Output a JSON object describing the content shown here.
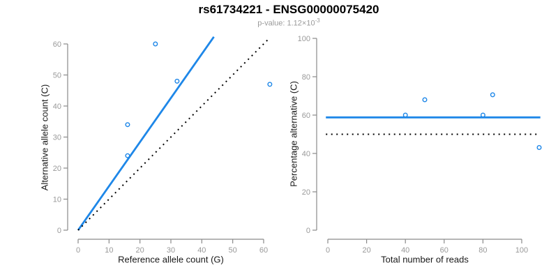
{
  "header": {
    "title": "rs61734221 - ENSG00000075420",
    "subtitle_prefix": "p-value: 1.12×10",
    "subtitle_exponent": "-3"
  },
  "colors": {
    "accent_blue": "#1E87E8",
    "dotted_black": "#000000",
    "axis_gray": "#8A8A8A",
    "tick_label_gray": "#999999"
  },
  "chart_data": [
    {
      "type": "scatter",
      "xlabel": "Reference allele count (G)",
      "ylabel": "Alternative allele count (C)",
      "xlim": [
        0,
        62
      ],
      "ylim": [
        0,
        62
      ],
      "grid": false,
      "x_ticks": [
        0,
        10,
        20,
        30,
        40,
        50,
        60
      ],
      "y_ticks": [
        0,
        10,
        20,
        30,
        40,
        50,
        60
      ],
      "points": [
        [
          16,
          24
        ],
        [
          16,
          34
        ],
        [
          25,
          60
        ],
        [
          32,
          48
        ],
        [
          62,
          47
        ]
      ],
      "point_color": "#1E87E8",
      "lines": [
        {
          "name": "fitted-ratio-line",
          "style": "solid",
          "color": "#1E87E8",
          "x1": 0,
          "y1": 0,
          "x2": 43.9,
          "y2": 62.3
        },
        {
          "name": "identity-line",
          "style": "dotted",
          "color": "#000000",
          "x1": 0,
          "y1": 0,
          "x2": 61.9,
          "y2": 61.9
        }
      ]
    },
    {
      "type": "scatter",
      "xlabel": "Total number of reads",
      "ylabel": "Percentage alternative (C)",
      "xlim": [
        0,
        110
      ],
      "ylim": [
        0,
        100
      ],
      "grid": false,
      "x_ticks": [
        0,
        20,
        40,
        60,
        80,
        100
      ],
      "y_ticks": [
        0,
        20,
        40,
        60,
        80,
        100
      ],
      "points": [
        [
          40,
          60
        ],
        [
          50,
          68
        ],
        [
          80,
          60
        ],
        [
          85,
          70.6
        ],
        [
          109,
          43.1
        ]
      ],
      "point_color": "#1E87E8",
      "lines": [
        {
          "name": "mean-percentage-line",
          "style": "solid",
          "color": "#1E87E8",
          "x1": -1,
          "y1": 58.8,
          "x2": 109.6,
          "y2": 58.8
        },
        {
          "name": "reference-50pct-line",
          "style": "dotted",
          "color": "#000000",
          "x1": -1,
          "y1": 50,
          "x2": 109.6,
          "y2": 50
        }
      ]
    }
  ]
}
